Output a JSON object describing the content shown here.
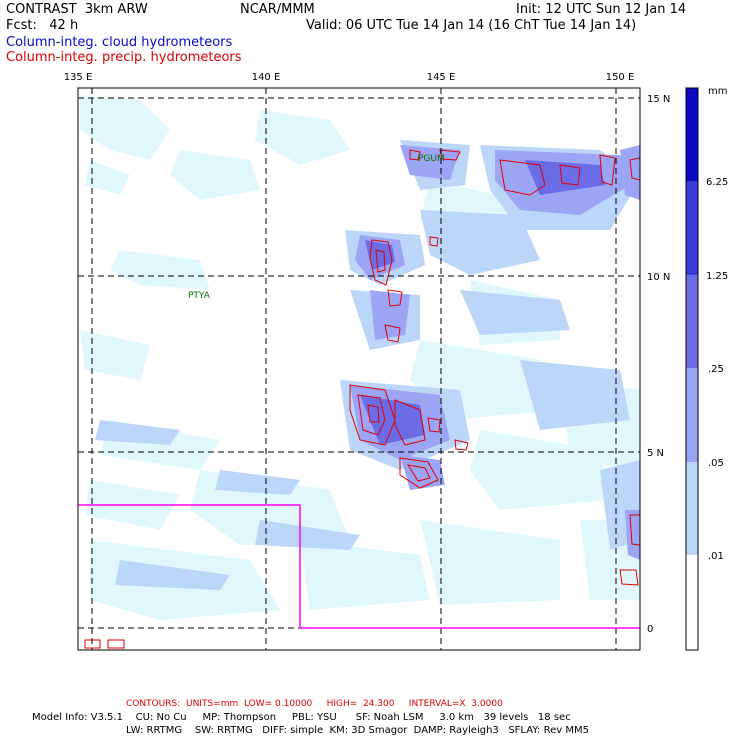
{
  "header": {
    "title": "CONTRAST  3km ARW",
    "org": "NCAR/MMM",
    "init": "Init: 12 UTC Sun 12 Jan 14",
    "fcst": "Fcst:   42 h",
    "valid": "Valid: 06 UTC Tue 14 Jan 14 (16 ChT Tue 14 Jan 14)"
  },
  "legend": {
    "cloud": "Column-integ. cloud hydrometeors",
    "precip": "Column-integ. precip. hydrometeors",
    "cloud_color": "#0a0ac8",
    "precip_color": "#e00000"
  },
  "map": {
    "lon_labels": [
      "135 E",
      "140 E",
      "145 E",
      "150 E"
    ],
    "lat_labels": [
      "15 N",
      "10 N",
      "5 N",
      "0"
    ],
    "stations": [
      "PGUM",
      "PTYA"
    ],
    "box_color": "#ff00ff"
  },
  "colorbar": {
    "unit": "mm",
    "levels": [
      "6.25",
      "1.25",
      ".25",
      ".05",
      ".01"
    ],
    "colors": [
      "#ffffff",
      "#e0f8fc",
      "#bcd6fa",
      "#9ca4f4",
      "#6c6ce6",
      "#3a3ad8",
      "#0a0ac8"
    ]
  },
  "footer": {
    "contours": "CONTOURS:  UNITS=mm  LOW= 0.10000     HIGH=  24.300     INTERVAL=X  3.0000",
    "model_line1": "Model Info: V3.5.1    CU: No Cu     MP: Thompson     PBL: YSU      SF: Noah LSM     3.0 km   39 levels   18 sec",
    "model_line2": "LW: RRTMG    SW: RRTMG   DIFF: simple  KM: 3D Smagor  DAMP: Rayleigh3   SFLAY: Rev MM5"
  }
}
